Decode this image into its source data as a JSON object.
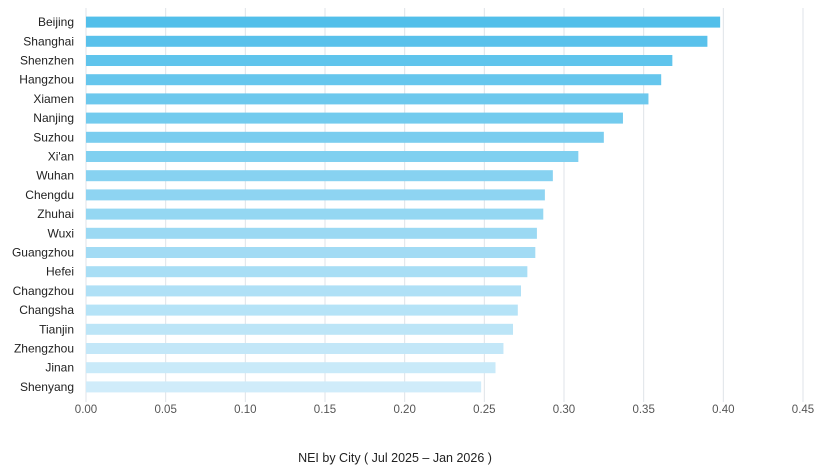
{
  "chart_data": {
    "type": "bar",
    "orientation": "horizontal",
    "categories": [
      "Beijing",
      "Shanghai",
      "Shenzhen",
      "Hangzhou",
      "Xiamen",
      "Nanjing",
      "Suzhou",
      "Xi'an",
      "Wuhan",
      "Chengdu",
      "Zhuhai",
      "Wuxi",
      "Guangzhou",
      "Hefei",
      "Changzhou",
      "Changsha",
      "Tianjin",
      "Zhengzhou",
      "Jinan",
      "Shenyang"
    ],
    "values": [
      0.398,
      0.39,
      0.368,
      0.361,
      0.353,
      0.337,
      0.325,
      0.309,
      0.293,
      0.288,
      0.287,
      0.283,
      0.282,
      0.277,
      0.273,
      0.271,
      0.268,
      0.262,
      0.257,
      0.248
    ],
    "xlim": [
      0,
      0.45
    ],
    "x_ticks": [
      "0.00",
      "0.05",
      "0.10",
      "0.15",
      "0.20",
      "0.25",
      "0.30",
      "0.35",
      "0.40",
      "0.45"
    ],
    "grid": "vertical",
    "colors": {
      "bar_dark": "#52bfea",
      "bar_light": "#d0ecfa",
      "grid": "#dfe3e8",
      "axis_text": "#555555",
      "label_text": "#222222"
    }
  },
  "caption": "NEI by City ( Jul 2025 – Jan 2026 )"
}
